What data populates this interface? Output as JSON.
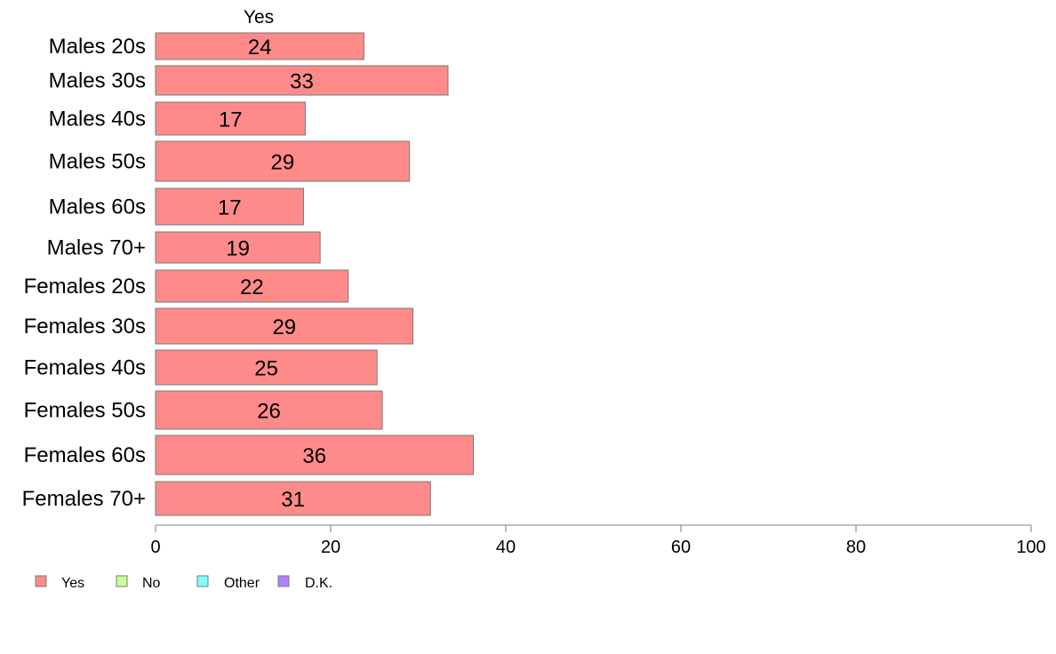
{
  "chart_data": {
    "type": "bar",
    "orientation": "horizontal",
    "stacked": true,
    "categories": [
      "Males 20s",
      "Males 30s",
      "Males 40s",
      "Males 50s",
      "Males 60s",
      "Males 70+",
      "Females 20s",
      "Females 30s",
      "Females 40s",
      "Females 50s",
      "Females 60s",
      "Females 70+"
    ],
    "series": [
      {
        "name": "Yes",
        "color": "#ff8a8a",
        "values": [
          23.8,
          33.4,
          17.1,
          29.0,
          16.9,
          18.8,
          22.0,
          29.4,
          25.3,
          25.9,
          36.3,
          31.4
        ],
        "labels": [
          "24",
          "33",
          "17",
          "29",
          "17",
          "19",
          "22",
          "29",
          "25",
          "26",
          "36",
          "31"
        ]
      }
    ],
    "series_header": "Yes",
    "xlim": [
      0,
      100
    ],
    "xticks": [
      0,
      20,
      40,
      60,
      80,
      100
    ],
    "grid": false,
    "legend": {
      "position": "bottom-left",
      "entries": [
        {
          "label": "Yes",
          "color": "#ff8a8a"
        },
        {
          "label": "No",
          "color": "#ccff99"
        },
        {
          "label": "Other",
          "color": "#80ffff"
        },
        {
          "label": "D.K.",
          "color": "#b380ff"
        }
      ]
    }
  }
}
